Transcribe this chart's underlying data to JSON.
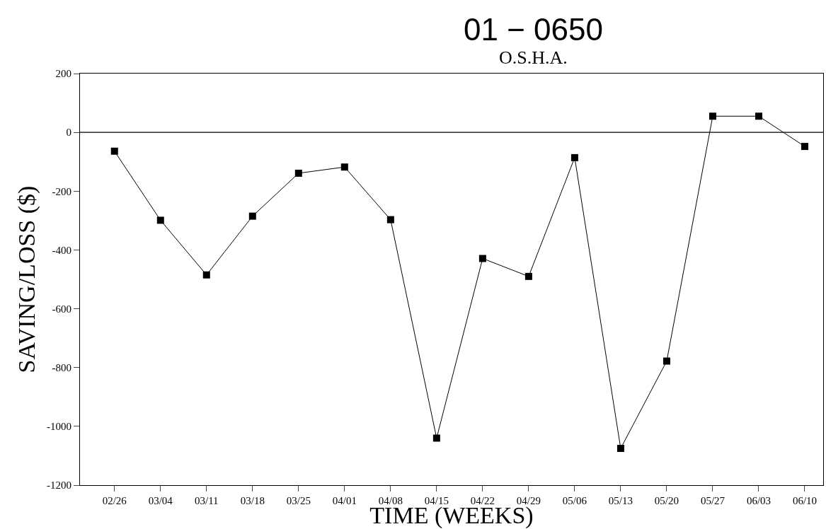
{
  "chart_data": {
    "type": "line",
    "title": "01 − 0650",
    "subtitle": "O.S.H.A.",
    "xlabel": "TIME (WEEKS)",
    "ylabel": "SAVING/LOSS ($)",
    "categories": [
      "02/26",
      "03/04",
      "03/11",
      "03/18",
      "03/25",
      "04/01",
      "04/08",
      "04/15",
      "04/22",
      "04/29",
      "05/06",
      "05/13",
      "05/20",
      "05/27",
      "06/03",
      "06/10"
    ],
    "series": [
      {
        "color": "#000000",
        "values": [
          -64,
          -299,
          -485,
          -285,
          -139,
          -118,
          -297,
          -1040,
          -429,
          -490,
          -86,
          -1075,
          -778,
          55,
          55,
          -48
        ]
      }
    ],
    "ylim": [
      -1200,
      200
    ],
    "yticks": [
      -1200,
      -1000,
      -800,
      -600,
      -400,
      -200,
      0,
      200
    ],
    "ref_lines": [
      {
        "axis": "y",
        "value": 0,
        "color": "#000000"
      }
    ],
    "marker": "square",
    "line_style": "solid"
  }
}
